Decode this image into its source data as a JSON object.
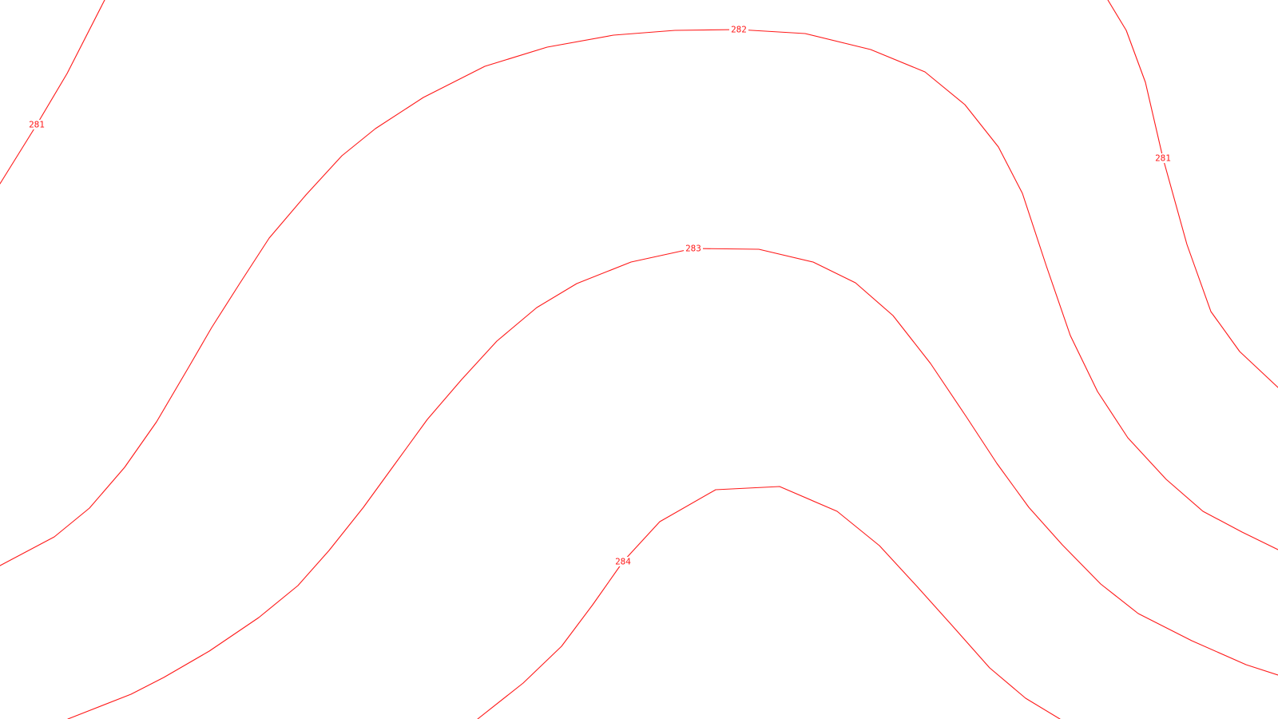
{
  "map": {
    "line_color": "#ff1a1a",
    "background": "#ffffff",
    "contours": [
      {
        "id": "281-left",
        "label": "281"
      },
      {
        "id": "282-outer",
        "label": "282"
      },
      {
        "id": "283-middle",
        "label": "283"
      },
      {
        "id": "284-inner",
        "label": "284"
      },
      {
        "id": "281-right",
        "label": "281"
      }
    ]
  }
}
